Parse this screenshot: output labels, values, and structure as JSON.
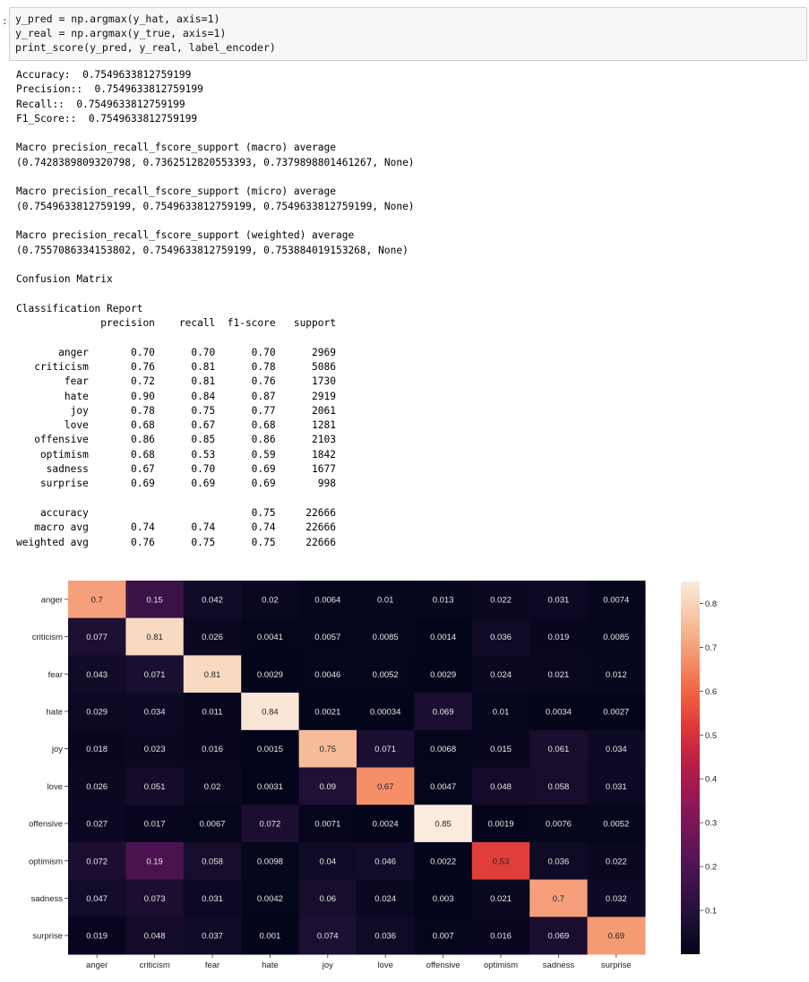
{
  "cell": {
    "prompt": ":",
    "code_lines": [
      "y_pred = np.argmax(y_hat, axis=1)",
      "y_real = np.argmax(y_true, axis=1)",
      "print_score(y_pred, y_real, label_encoder)"
    ]
  },
  "output": {
    "lines": [
      "Accuracy:  0.7549633812759199",
      "Precision::  0.7549633812759199",
      "Recall::  0.7549633812759199",
      "F1_Score::  0.7549633812759199",
      "",
      "Macro precision_recall_fscore_support (macro) average",
      "(0.7428389809320798, 0.7362512820553393, 0.7379898801461267, None)",
      "",
      "Macro precision_recall_fscore_support (micro) average",
      "(0.7549633812759199, 0.7549633812759199, 0.7549633812759199, None)",
      "",
      "Macro precision_recall_fscore_support (weighted) average",
      "(0.7557086334153802, 0.7549633812759199, 0.753884019153268, None)",
      "",
      "Confusion Matrix",
      "",
      "Classification Report",
      "              precision    recall  f1-score   support",
      "",
      "       anger       0.70      0.70      0.70      2969",
      "   criticism       0.76      0.81      0.78      5086",
      "        fear       0.72      0.81      0.76      1730",
      "        hate       0.90      0.84      0.87      2919",
      "         joy       0.78      0.75      0.77      2061",
      "        love       0.68      0.67      0.68      1281",
      "   offensive       0.86      0.85      0.86      2103",
      "    optimism       0.68      0.53      0.59      1842",
      "     sadness       0.67      0.70      0.69      1677",
      "    surprise       0.69      0.69      0.69       998",
      "",
      "    accuracy                           0.75     22666",
      "   macro avg       0.74      0.74      0.74     22666",
      "weighted avg       0.76      0.75      0.75     22666"
    ]
  },
  "chart_data": {
    "type": "heatmap",
    "title": "",
    "xlabel": "",
    "ylabel": "",
    "x_labels": [
      "anger",
      "criticism",
      "fear",
      "hate",
      "joy",
      "love",
      "offensive",
      "optimism",
      "sadness",
      "surprise"
    ],
    "y_labels": [
      "anger",
      "criticism",
      "fear",
      "hate",
      "joy",
      "love",
      "offensive",
      "optimism",
      "sadness",
      "surprise"
    ],
    "values": [
      [
        "0.7",
        "0.15",
        "0.042",
        "0.02",
        "0.0064",
        "0.01",
        "0.013",
        "0.022",
        "0.031",
        "0.0074"
      ],
      [
        "0.077",
        "0.81",
        "0.026",
        "0.0041",
        "0.0057",
        "0.0085",
        "0.0014",
        "0.036",
        "0.019",
        "0.0085"
      ],
      [
        "0.043",
        "0.071",
        "0.81",
        "0.0029",
        "0.0046",
        "0.0052",
        "0.0029",
        "0.024",
        "0.021",
        "0.012"
      ],
      [
        "0.029",
        "0.034",
        "0.011",
        "0.84",
        "0.0021",
        "0.00034",
        "0.069",
        "0.01",
        "0.0034",
        "0.0027"
      ],
      [
        "0.018",
        "0.023",
        "0.016",
        "0.0015",
        "0.75",
        "0.071",
        "0.0068",
        "0.015",
        "0.061",
        "0.034"
      ],
      [
        "0.026",
        "0.051",
        "0.02",
        "0.0031",
        "0.09",
        "0.67",
        "0.0047",
        "0.048",
        "0.058",
        "0.031"
      ],
      [
        "0.027",
        "0.017",
        "0.0067",
        "0.072",
        "0.0071",
        "0.0024",
        "0.85",
        "0.0019",
        "0.0076",
        "0.0052"
      ],
      [
        "0.072",
        "0.19",
        "0.058",
        "0.0098",
        "0.04",
        "0.046",
        "0.0022",
        "0.53",
        "0.036",
        "0.022"
      ],
      [
        "0.047",
        "0.073",
        "0.031",
        "0.0042",
        "0.06",
        "0.024",
        "0.003",
        "0.021",
        "0.7",
        "0.032"
      ],
      [
        "0.019",
        "0.048",
        "0.037",
        "0.001",
        "0.074",
        "0.036",
        "0.007",
        "0.016",
        "0.069",
        "0.69"
      ]
    ],
    "colormap": "rocket",
    "colorbar": {
      "range": [
        0,
        0.85
      ],
      "ticks": [
        "0.1",
        "0.2",
        "0.3",
        "0.4",
        "0.5",
        "0.6",
        "0.7",
        "0.8"
      ]
    }
  }
}
